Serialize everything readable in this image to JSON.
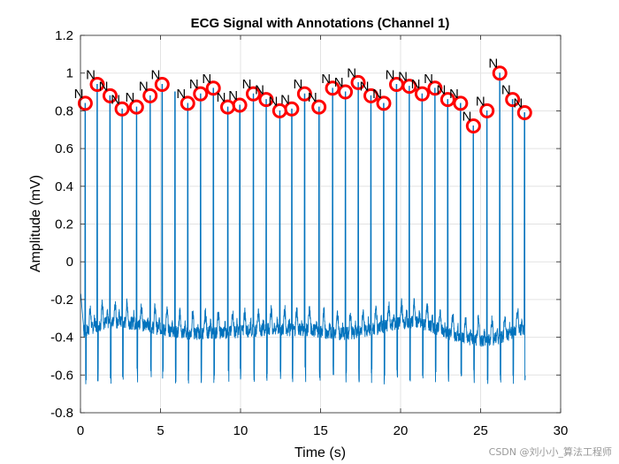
{
  "chart_data": {
    "type": "line",
    "title": "ECG Signal with Annotations (Channel 1)",
    "xlabel": "Time (s)",
    "ylabel": "Amplitude (mV)",
    "xlim": [
      0,
      30
    ],
    "ylim": [
      -0.8,
      1.2
    ],
    "xticks": [
      0,
      5,
      10,
      15,
      20,
      25,
      30
    ],
    "yticks": [
      -0.8,
      -0.6,
      -0.4,
      -0.2,
      0,
      0.2,
      0.4,
      0.6,
      0.8,
      1,
      1.2
    ],
    "grid": true,
    "series": [
      {
        "name": "ECG signal",
        "color": "#0072BD",
        "baseline": -0.35,
        "duration_s": 27.8
      }
    ],
    "annotations": {
      "symbol": "N",
      "marker_color": "#FF0000",
      "points": [
        {
          "t": 0.3,
          "v": 0.84
        },
        {
          "t": 1.05,
          "v": 0.94
        },
        {
          "t": 1.85,
          "v": 0.88
        },
        {
          "t": 2.6,
          "v": 0.81
        },
        {
          "t": 3.5,
          "v": 0.82
        },
        {
          "t": 4.35,
          "v": 0.88
        },
        {
          "t": 5.1,
          "v": 0.94
        },
        {
          "t": 6.7,
          "v": 0.84
        },
        {
          "t": 7.5,
          "v": 0.89
        },
        {
          "t": 8.3,
          "v": 0.92
        },
        {
          "t": 9.2,
          "v": 0.82
        },
        {
          "t": 9.95,
          "v": 0.83
        },
        {
          "t": 10.8,
          "v": 0.89
        },
        {
          "t": 11.6,
          "v": 0.86
        },
        {
          "t": 12.45,
          "v": 0.8
        },
        {
          "t": 13.2,
          "v": 0.81
        },
        {
          "t": 14.0,
          "v": 0.89
        },
        {
          "t": 14.9,
          "v": 0.82
        },
        {
          "t": 15.75,
          "v": 0.92
        },
        {
          "t": 16.55,
          "v": 0.9
        },
        {
          "t": 17.35,
          "v": 0.95
        },
        {
          "t": 18.15,
          "v": 0.88
        },
        {
          "t": 18.95,
          "v": 0.84
        },
        {
          "t": 19.75,
          "v": 0.94
        },
        {
          "t": 20.55,
          "v": 0.93
        },
        {
          "t": 21.35,
          "v": 0.89
        },
        {
          "t": 22.15,
          "v": 0.92
        },
        {
          "t": 22.95,
          "v": 0.86
        },
        {
          "t": 23.75,
          "v": 0.84
        },
        {
          "t": 24.55,
          "v": 0.72
        },
        {
          "t": 25.4,
          "v": 0.8
        },
        {
          "t": 26.2,
          "v": 1.0
        },
        {
          "t": 27.0,
          "v": 0.86
        },
        {
          "t": 27.75,
          "v": 0.79
        }
      ]
    }
  },
  "watermark": "CSDN @刘小小_算法工程师"
}
